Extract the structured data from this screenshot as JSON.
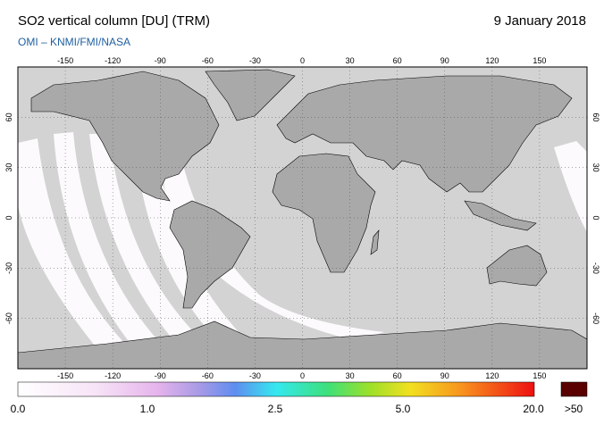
{
  "header": {
    "title": "SO2 vertical column [DU] (TRM)",
    "date": "9 January 2018",
    "source": "OMI  –  KNMI/FMI/NASA"
  },
  "map": {
    "lon_ticks": [
      -150,
      -120,
      -90,
      -60,
      -30,
      0,
      30,
      60,
      90,
      120,
      150
    ],
    "lat_ticks": [
      60,
      30,
      0,
      -30,
      -60
    ]
  },
  "colorbar": {
    "labels": [
      "0.0",
      "1.0",
      "2.5",
      "5.0",
      "20.0",
      ">50"
    ]
  }
}
